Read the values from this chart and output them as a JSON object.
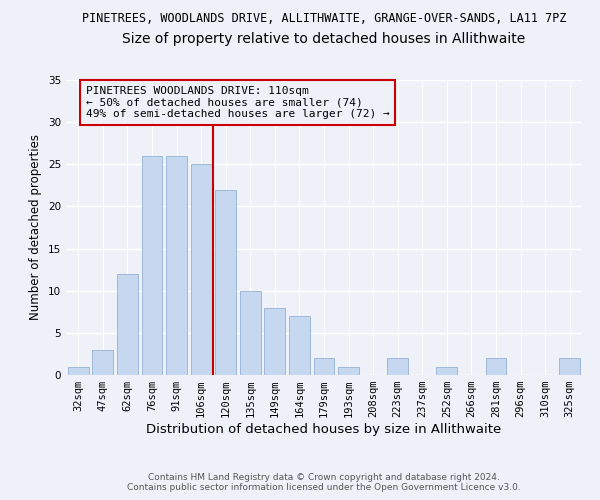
{
  "title1": "PINETREES, WOODLANDS DRIVE, ALLITHWAITE, GRANGE-OVER-SANDS, LA11 7PZ",
  "title2": "Size of property relative to detached houses in Allithwaite",
  "xlabel": "Distribution of detached houses by size in Allithwaite",
  "ylabel": "Number of detached properties",
  "bar_labels": [
    "32sqm",
    "47sqm",
    "62sqm",
    "76sqm",
    "91sqm",
    "106sqm",
    "120sqm",
    "135sqm",
    "149sqm",
    "164sqm",
    "179sqm",
    "193sqm",
    "208sqm",
    "223sqm",
    "237sqm",
    "252sqm",
    "266sqm",
    "281sqm",
    "296sqm",
    "310sqm",
    "325sqm"
  ],
  "bar_values": [
    1,
    3,
    12,
    26,
    26,
    25,
    22,
    10,
    8,
    7,
    2,
    1,
    0,
    2,
    0,
    1,
    0,
    2,
    0,
    0,
    2
  ],
  "bar_color": "#c5d8f0",
  "bar_edge_color": "#a0b8d8",
  "vline_x": 5.5,
  "vline_color": "#cc0000",
  "annotation_box_text": "PINETREES WOODLANDS DRIVE: 110sqm\n← 50% of detached houses are smaller (74)\n49% of semi-detached houses are larger (72) →",
  "box_edge_color": "#cc0000",
  "ylim": [
    0,
    35
  ],
  "yticks": [
    0,
    5,
    10,
    15,
    20,
    25,
    30,
    35
  ],
  "footer1": "Contains HM Land Registry data © Crown copyright and database right 2024.",
  "footer2": "Contains public sector information licensed under the Open Government Licence v3.0.",
  "background_color": "#eef2f8",
  "grid_color": "#ffffff",
  "title1_fontsize": 8.5,
  "title2_fontsize": 10,
  "xlabel_fontsize": 9.5,
  "ylabel_fontsize": 8.5,
  "tick_fontsize": 7.5,
  "annotation_fontsize": 8,
  "footer_fontsize": 6.5
}
